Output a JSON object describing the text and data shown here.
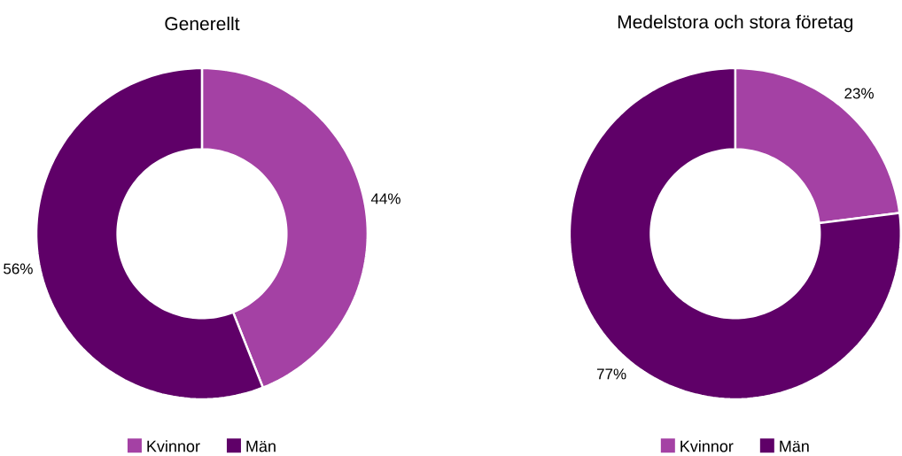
{
  "chart_data": [
    {
      "type": "donut",
      "title": "Generellt",
      "categories": [
        "Kvinnor",
        "Män"
      ],
      "values": [
        44,
        56
      ],
      "value_labels": [
        "44%",
        "56%"
      ],
      "colors": [
        "#a441a4",
        "#5f0068"
      ],
      "legend": "bottom"
    },
    {
      "type": "donut",
      "title": "Medelstora och stora företag",
      "categories": [
        "Kvinnor",
        "Män"
      ],
      "values": [
        23,
        77
      ],
      "value_labels": [
        "23%",
        "77%"
      ],
      "colors": [
        "#a441a4",
        "#5f0068"
      ],
      "legend": "bottom"
    }
  ]
}
